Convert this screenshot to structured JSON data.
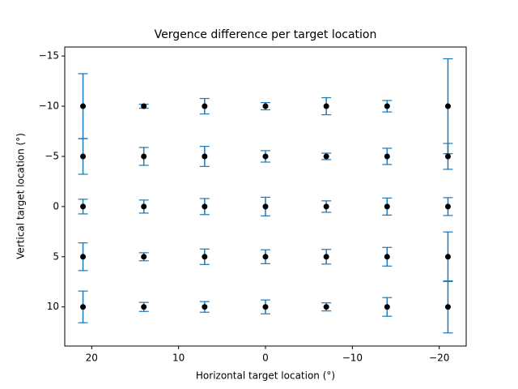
{
  "chart_data": {
    "type": "errorbar",
    "title": "Vergence difference per target location",
    "xlabel": "Horizontal target location (°)",
    "ylabel": "Vertical target location (°)",
    "xlim": [
      23.1,
      -23.1
    ],
    "ylim": [
      13.9,
      -15.9
    ],
    "xticks": [
      20,
      10,
      0,
      {
        "value": -10,
        "label": "−10"
      },
      {
        "value": -20,
        "label": "−20"
      }
    ],
    "yticks": [
      {
        "value": -15,
        "label": "−15"
      },
      {
        "value": -10,
        "label": "−10"
      },
      {
        "value": -5,
        "label": "−5"
      },
      0,
      5,
      10
    ],
    "marker_color": "#000000",
    "error_color": "#1f77b4",
    "x": [
      21,
      21,
      21,
      21,
      21,
      14,
      14,
      14,
      14,
      14,
      7,
      7,
      7,
      7,
      7,
      0,
      0,
      0,
      0,
      0,
      -7,
      -7,
      -7,
      -7,
      -7,
      -14,
      -14,
      -14,
      -14,
      -14,
      -21,
      -21,
      -21,
      -21,
      -21
    ],
    "y": [
      -10,
      -5,
      0,
      5,
      10,
      -10,
      -5,
      0,
      5,
      10,
      -10,
      -5,
      0,
      5,
      10,
      -10,
      -5,
      0,
      5,
      10,
      -10,
      -5,
      0,
      5,
      10,
      -10,
      -5,
      0,
      5,
      10,
      -10,
      -5,
      0,
      5,
      10
    ],
    "yerr": [
      3.24,
      1.78,
      0.73,
      1.38,
      1.58,
      0.2,
      0.89,
      0.65,
      0.4,
      0.45,
      0.77,
      1.0,
      0.8,
      0.77,
      0.53,
      0.36,
      0.57,
      0.93,
      0.69,
      0.69,
      0.85,
      0.32,
      0.57,
      0.73,
      0.4,
      0.57,
      0.81,
      0.85,
      0.93,
      0.93,
      4.73,
      1.29,
      0.89,
      2.47,
      2.59
    ]
  }
}
